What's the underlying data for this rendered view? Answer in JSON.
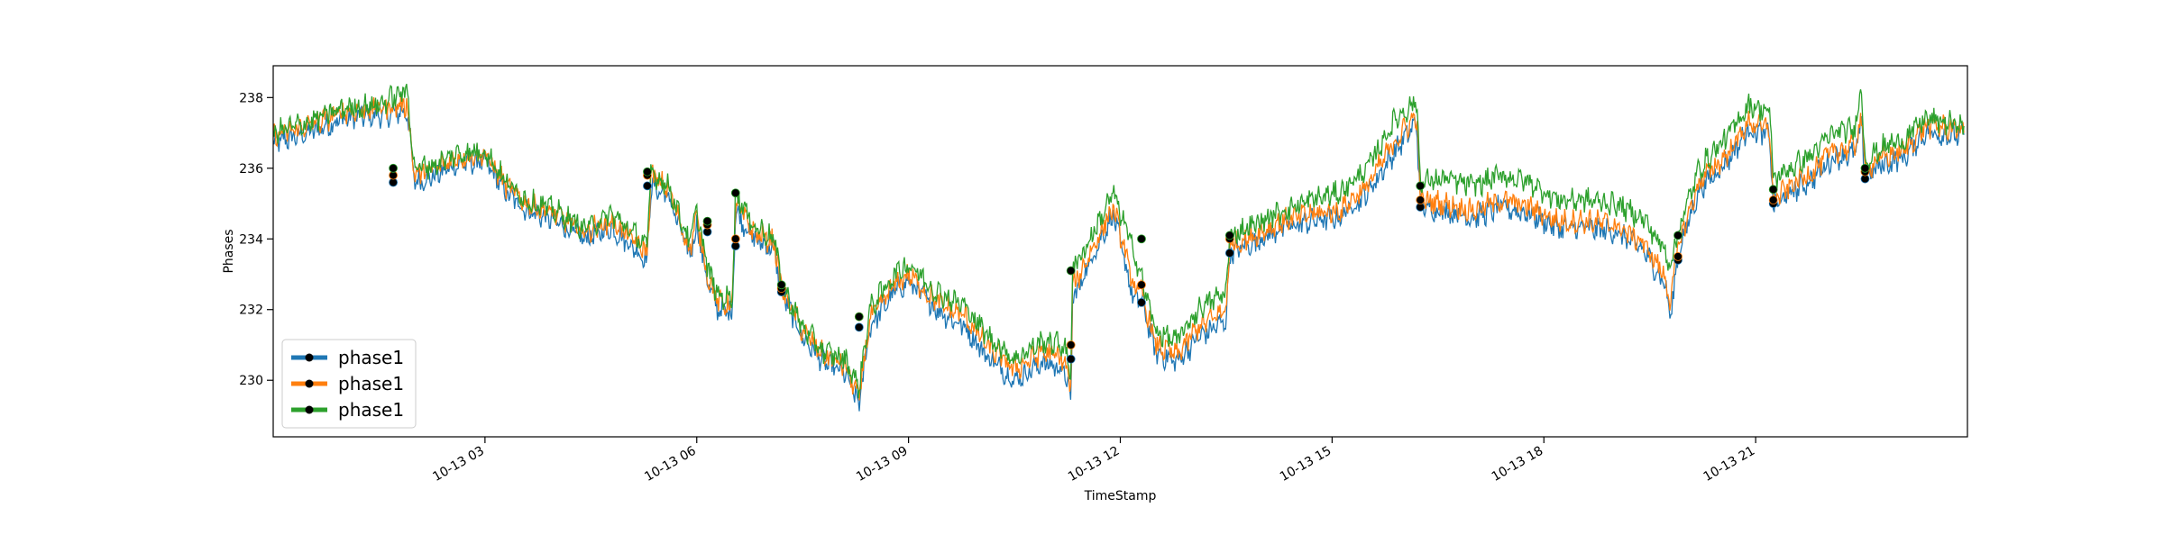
{
  "chart_data": {
    "type": "line",
    "title": "",
    "xlabel": "TimeStamp",
    "ylabel": "Phases",
    "x_range": [
      "10-13 00:00",
      "23:59"
    ],
    "ylim": [
      228.4,
      238.9
    ],
    "x_ticks": [
      "10-13 03",
      "10-13 06",
      "10-13 09",
      "10-13 12",
      "10-13 15",
      "10-13 18",
      "10-13 21"
    ],
    "y_ticks": [
      "230",
      "232",
      "234",
      "236",
      "238"
    ],
    "grid": false,
    "legend": {
      "location": "lower-left",
      "entries": [
        "phase1",
        "phase1",
        "phase1"
      ]
    },
    "series": [
      {
        "name": "phase1",
        "color": "#1f77b4",
        "x": [
          0,
          0.5,
          1,
          1.5,
          1.9,
          2.0,
          2.3,
          2.6,
          3.0,
          3.3,
          3.6,
          4.0,
          4.4,
          4.8,
          5.3,
          5.35,
          5.6,
          5.9,
          6.0,
          6.15,
          6.3,
          6.5,
          6.55,
          6.8,
          7.1,
          7.2,
          7.5,
          7.8,
          8.1,
          8.3,
          8.45,
          8.8,
          9.0,
          9.4,
          9.8,
          10.1,
          10.5,
          10.9,
          11.2,
          11.3,
          11.32,
          11.6,
          11.9,
          12.2,
          12.3,
          12.5,
          12.8,
          13.1,
          13.5,
          13.55,
          13.9,
          14.3,
          14.7,
          15.1,
          15.5,
          15.9,
          16.2,
          16.25,
          16.6,
          17.0,
          17.4,
          17.8,
          18.2,
          18.6,
          19.0,
          19.4,
          19.7,
          19.8,
          19.9,
          20.2,
          20.6,
          20.9,
          21.2,
          21.25,
          21.5,
          21.8,
          22.1,
          22.4,
          22.5,
          22.55,
          22.8,
          23.1,
          23.4,
          23.95
        ],
        "y": [
          236.7,
          237.0,
          237.4,
          237.5,
          237.6,
          235.6,
          235.8,
          236.1,
          236.2,
          235.3,
          234.8,
          234.5,
          234.0,
          234.3,
          233.4,
          235.5,
          235.2,
          233.5,
          234.4,
          232.8,
          232.0,
          231.9,
          234.8,
          234.0,
          233.7,
          232.5,
          231.2,
          230.5,
          230.2,
          229.3,
          231.5,
          232.5,
          232.8,
          232.0,
          231.5,
          230.7,
          230.0,
          230.5,
          230.3,
          229.4,
          232.2,
          233.5,
          234.7,
          232.2,
          232.3,
          230.8,
          230.5,
          231.2,
          231.7,
          233.6,
          233.9,
          234.3,
          234.5,
          234.6,
          235.3,
          236.5,
          237.3,
          234.9,
          234.8,
          234.6,
          234.9,
          234.7,
          234.3,
          234.3,
          234.2,
          233.7,
          232.8,
          231.8,
          233.6,
          235.4,
          236.2,
          237.1,
          236.9,
          234.9,
          235.3,
          235.7,
          236.3,
          236.4,
          237.2,
          235.8,
          236.1,
          236.3,
          237.0,
          236.9
        ]
      },
      {
        "name": "phase1",
        "color": "#ff7f0e",
        "x": [
          0,
          0.5,
          1,
          1.5,
          1.9,
          2.0,
          2.3,
          2.6,
          3.0,
          3.3,
          3.6,
          4.0,
          4.4,
          4.8,
          5.3,
          5.35,
          5.6,
          5.9,
          6.0,
          6.15,
          6.3,
          6.5,
          6.55,
          6.8,
          7.1,
          7.2,
          7.5,
          7.8,
          8.1,
          8.3,
          8.45,
          8.8,
          9.0,
          9.4,
          9.8,
          10.1,
          10.5,
          10.9,
          11.2,
          11.3,
          11.32,
          11.6,
          11.9,
          12.2,
          12.3,
          12.5,
          12.8,
          13.1,
          13.5,
          13.55,
          13.9,
          14.3,
          14.7,
          15.1,
          15.5,
          15.9,
          16.2,
          16.25,
          16.6,
          17.0,
          17.4,
          17.8,
          18.2,
          18.6,
          19.0,
          19.4,
          19.7,
          19.8,
          19.9,
          20.2,
          20.6,
          20.9,
          21.2,
          21.25,
          21.5,
          21.8,
          22.1,
          22.4,
          22.5,
          22.55,
          22.8,
          23.1,
          23.4,
          23.95
        ],
        "y": [
          236.9,
          237.2,
          237.6,
          237.7,
          237.8,
          235.8,
          236.0,
          236.3,
          236.4,
          235.5,
          235.0,
          234.7,
          234.2,
          234.5,
          233.6,
          235.8,
          235.4,
          233.7,
          234.6,
          233.0,
          232.2,
          232.1,
          235.0,
          234.2,
          233.9,
          232.6,
          231.4,
          230.7,
          230.4,
          229.5,
          231.7,
          232.7,
          233.0,
          232.2,
          231.8,
          231.0,
          230.3,
          230.8,
          230.6,
          229.7,
          232.6,
          233.7,
          234.9,
          232.6,
          232.5,
          231.0,
          230.7,
          231.5,
          232.0,
          233.8,
          234.1,
          234.5,
          234.7,
          234.8,
          235.5,
          236.8,
          237.5,
          235.1,
          235.0,
          234.8,
          235.1,
          234.9,
          234.5,
          234.5,
          234.4,
          233.9,
          233.0,
          232.2,
          233.8,
          235.6,
          236.4,
          237.3,
          237.1,
          235.1,
          235.5,
          235.9,
          236.5,
          236.6,
          237.4,
          236.0,
          236.3,
          236.5,
          237.2,
          237.1
        ]
      },
      {
        "name": "phase1",
        "color": "#2ca02c",
        "x": [
          0,
          0.5,
          1,
          1.5,
          1.9,
          2.0,
          2.3,
          2.6,
          3.0,
          3.3,
          3.6,
          4.0,
          4.4,
          4.8,
          5.3,
          5.35,
          5.6,
          5.9,
          6.0,
          6.15,
          6.3,
          6.5,
          6.55,
          6.8,
          7.1,
          7.2,
          7.5,
          7.8,
          8.1,
          8.3,
          8.45,
          8.8,
          9.0,
          9.4,
          9.8,
          10.1,
          10.5,
          10.9,
          11.2,
          11.3,
          11.32,
          11.6,
          11.9,
          12.2,
          12.3,
          12.5,
          12.8,
          13.1,
          13.5,
          13.55,
          13.9,
          14.3,
          14.7,
          15.1,
          15.5,
          15.9,
          16.2,
          16.25,
          16.6,
          17.0,
          17.4,
          17.8,
          18.2,
          18.6,
          19.0,
          19.4,
          19.7,
          19.8,
          19.9,
          20.2,
          20.6,
          20.9,
          21.2,
          21.25,
          21.5,
          21.8,
          22.1,
          22.4,
          22.5,
          22.55,
          22.8,
          23.1,
          23.4,
          23.95
        ],
        "y": [
          237.0,
          237.3,
          237.7,
          237.8,
          238.2,
          236.0,
          236.1,
          236.4,
          236.5,
          235.6,
          235.1,
          234.8,
          234.3,
          234.7,
          233.8,
          235.9,
          235.5,
          233.9,
          234.8,
          233.2,
          232.4,
          232.3,
          235.3,
          234.4,
          234.0,
          232.7,
          231.5,
          230.8,
          230.6,
          229.8,
          232.0,
          233.0,
          233.3,
          232.5,
          232.1,
          231.3,
          230.6,
          231.1,
          231.0,
          230.2,
          233.1,
          234.1,
          235.3,
          233.6,
          232.9,
          231.4,
          231.1,
          232.0,
          232.5,
          234.1,
          234.4,
          234.8,
          235.1,
          235.3,
          236.0,
          237.4,
          237.9,
          235.6,
          235.7,
          235.5,
          235.8,
          235.6,
          235.1,
          235.1,
          235.0,
          234.6,
          233.7,
          233.3,
          234.2,
          236.0,
          236.9,
          237.8,
          237.6,
          235.7,
          236.0,
          236.4,
          237.0,
          237.1,
          238.3,
          236.2,
          236.6,
          236.8,
          237.4,
          237.2
        ]
      }
    ],
    "markers": {
      "color": "#000000",
      "x": [
        1.7,
        5.3,
        6.15,
        6.55,
        7.2,
        8.3,
        11.3,
        12.3,
        13.55,
        16.25,
        19.9,
        21.25,
        22.55
      ],
      "y_per_series": [
        [
          235.6,
          235.5,
          234.2,
          233.8,
          232.5,
          231.5,
          230.6,
          232.2,
          233.6,
          234.9,
          233.4,
          235.0,
          235.7
        ],
        [
          235.8,
          235.8,
          234.4,
          234.0,
          232.6,
          231.8,
          231.0,
          232.7,
          234.0,
          235.1,
          233.5,
          235.1,
          235.9
        ],
        [
          236.0,
          235.9,
          234.5,
          235.3,
          232.7,
          231.8,
          233.1,
          234.0,
          234.1,
          235.5,
          234.1,
          235.4,
          236.0
        ]
      ]
    }
  }
}
